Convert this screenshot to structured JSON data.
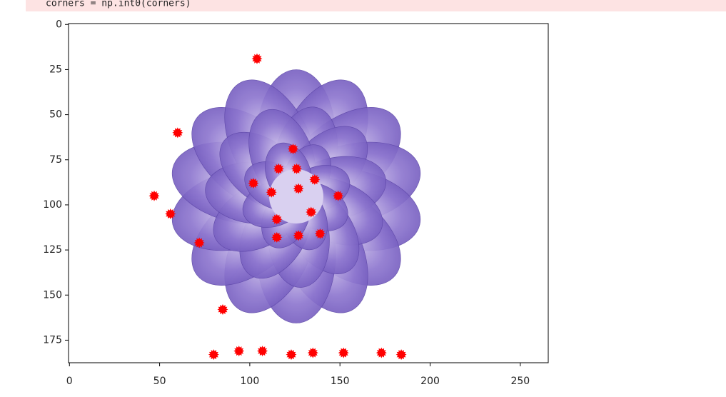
{
  "code": "corners = np.int0(corners)",
  "chart_data": {
    "type": "scatter",
    "xlim": [
      -0.5,
      265.5
    ],
    "ylim": [
      187.5,
      -0.5
    ],
    "xticks": [
      0,
      50,
      100,
      150,
      200,
      250
    ],
    "yticks": [
      0,
      25,
      50,
      75,
      100,
      125,
      150,
      175
    ],
    "color": "#ff0000",
    "x": [
      104,
      60,
      124,
      116,
      126,
      136,
      102,
      127,
      112,
      149,
      47,
      56,
      134,
      115,
      72,
      139,
      127,
      115,
      85,
      80,
      94,
      107,
      123,
      135,
      152,
      173,
      184
    ],
    "y": [
      19,
      60,
      69,
      80,
      80,
      86,
      88,
      91,
      93,
      95,
      95,
      105,
      104,
      108,
      121,
      116,
      117,
      118,
      158,
      183,
      181,
      181,
      183,
      182,
      182,
      182,
      183
    ]
  }
}
